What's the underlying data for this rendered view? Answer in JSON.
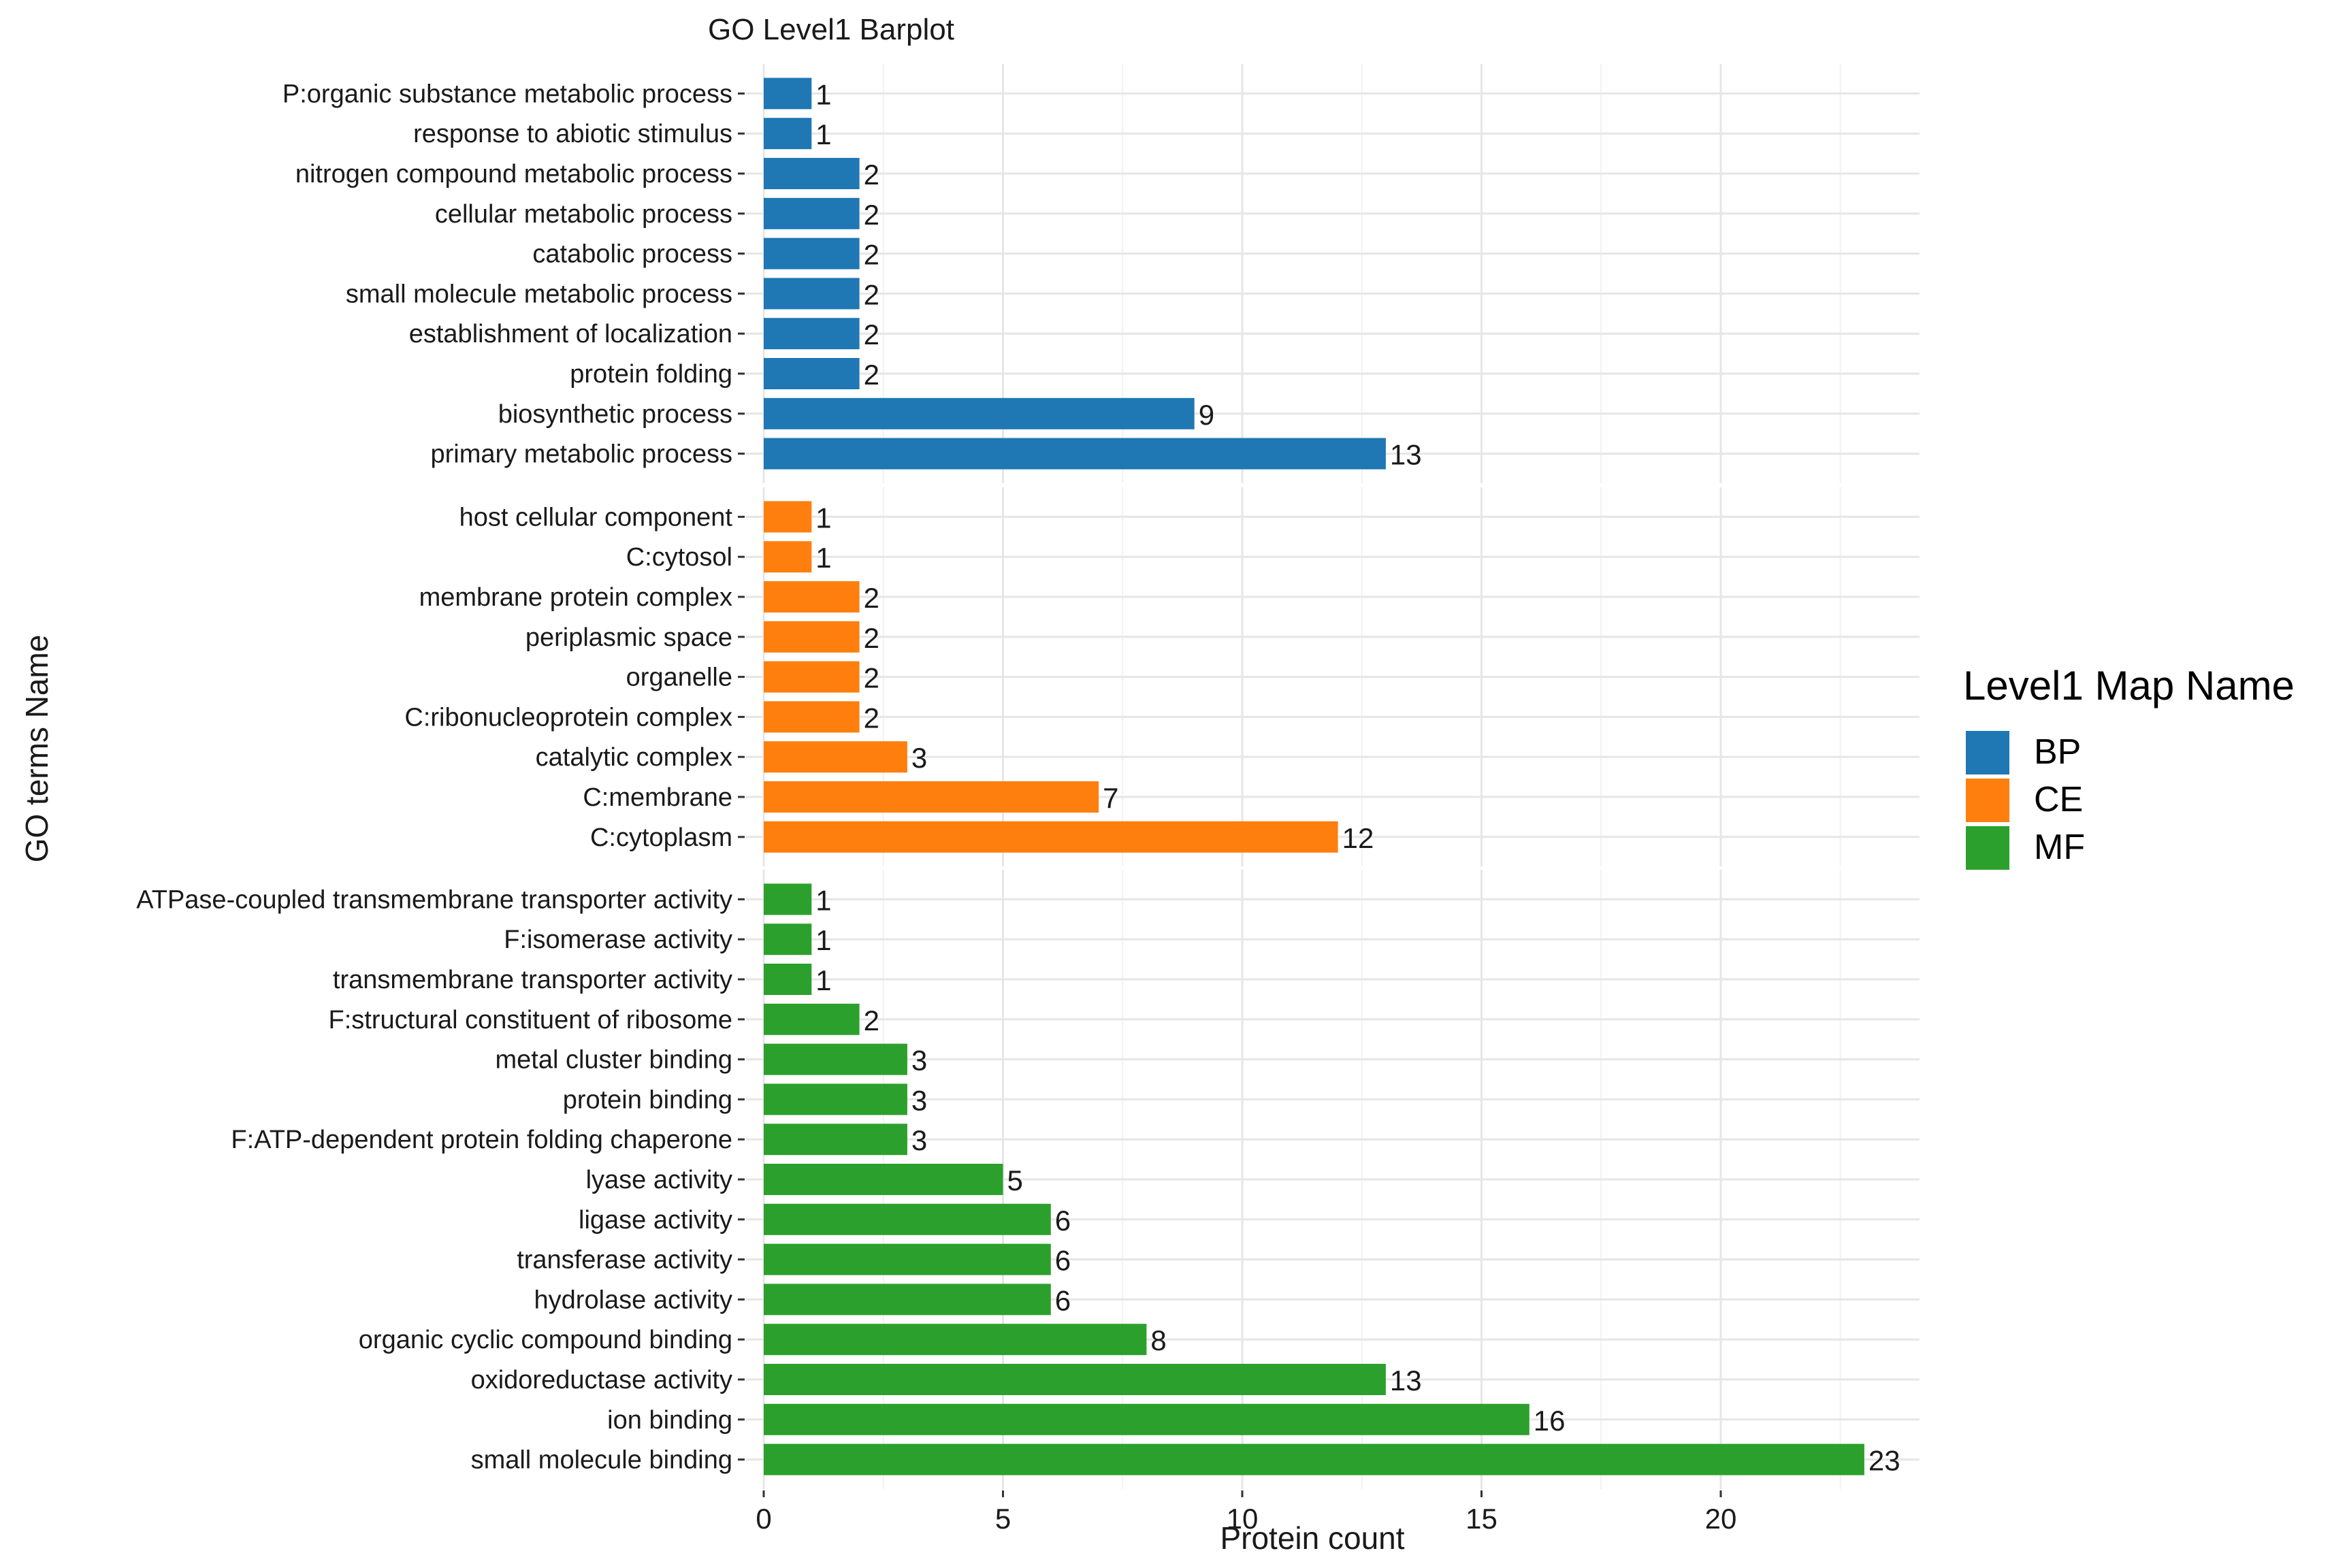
{
  "chart_data": {
    "type": "bar",
    "orientation": "horizontal",
    "title": "GO Level1 Barplot",
    "xlabel": "Protein count",
    "ylabel": "GO terms Name",
    "xlim": [
      0,
      24
    ],
    "x_ticks": [
      0,
      5,
      10,
      15,
      20
    ],
    "grid": true,
    "legend": {
      "title": "Level1 Map Name",
      "position": "right",
      "items": [
        {
          "name": "BP",
          "color": "#1F77B4"
        },
        {
          "name": "CE",
          "color": "#FF7F0E"
        },
        {
          "name": "MF",
          "color": "#2CA02C"
        }
      ]
    },
    "panels": [
      {
        "group": "BP",
        "color": "#1F77B4",
        "categories": [
          "P:organic substance metabolic process",
          "response to abiotic stimulus",
          "nitrogen compound metabolic process",
          "cellular metabolic process",
          "catabolic process",
          "small molecule metabolic process",
          "establishment of localization",
          "protein folding",
          "biosynthetic process",
          "primary metabolic process"
        ],
        "values": [
          1,
          1,
          2,
          2,
          2,
          2,
          2,
          2,
          9,
          13
        ]
      },
      {
        "group": "CE",
        "color": "#FF7F0E",
        "categories": [
          "host cellular component",
          "C:cytosol",
          "membrane protein complex",
          "periplasmic space",
          "organelle",
          "C:ribonucleoprotein complex",
          "catalytic complex",
          "C:membrane",
          "C:cytoplasm"
        ],
        "values": [
          1,
          1,
          2,
          2,
          2,
          2,
          3,
          7,
          12
        ]
      },
      {
        "group": "MF",
        "color": "#2CA02C",
        "categories": [
          "ATPase-coupled transmembrane transporter activity",
          "F:isomerase activity",
          "transmembrane transporter activity",
          "F:structural constituent of ribosome",
          "metal cluster binding",
          "protein binding",
          "F:ATP-dependent protein folding chaperone",
          "lyase activity",
          "ligase activity",
          "transferase activity",
          "hydrolase activity",
          "organic cyclic compound binding",
          "oxidoreductase activity",
          "ion binding",
          "small molecule binding"
        ],
        "values": [
          1,
          1,
          1,
          2,
          3,
          3,
          3,
          5,
          6,
          6,
          6,
          8,
          13,
          16,
          23
        ]
      }
    ]
  }
}
